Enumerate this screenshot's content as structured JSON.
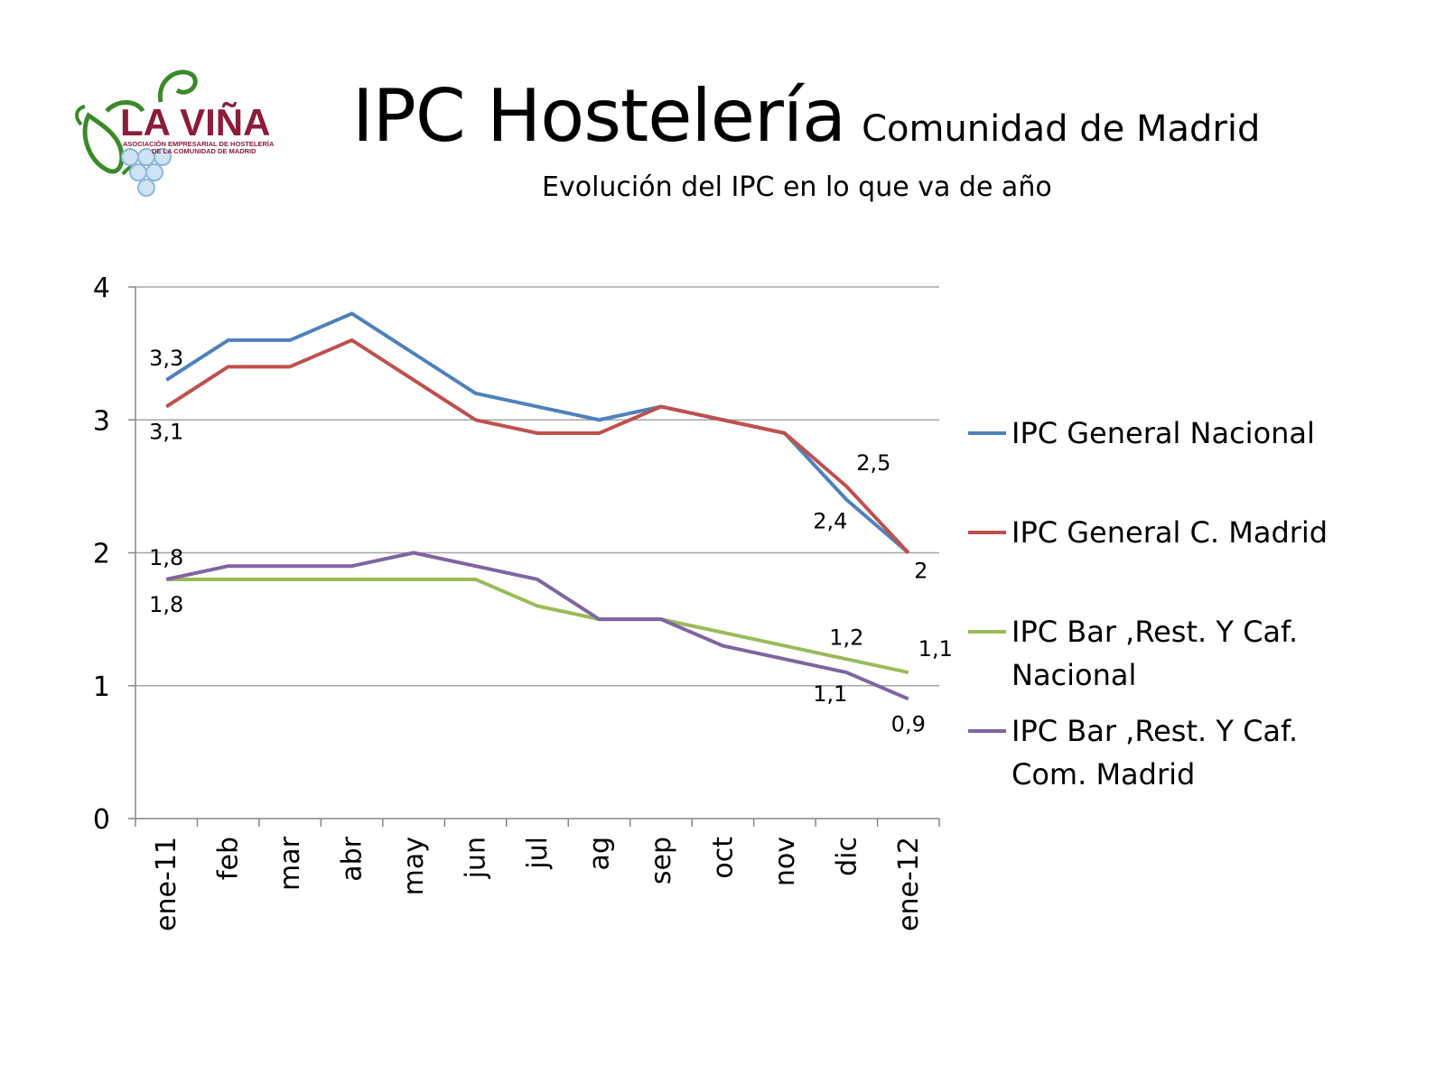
{
  "logo": {
    "name": "LA VIÑA",
    "tagline_1": "ASOCIACIÓN EMPRESARIAL DE HOSTELERÍA",
    "tagline_2": "DE LA COMUNIDAD DE MADRID"
  },
  "header": {
    "title": "IPC Hostelería",
    "title_suffix": "Comunidad de Madrid",
    "subtitle": "Evolución del IPC en lo que va de año"
  },
  "colors": {
    "general_nacional": "#4f81bd",
    "general_madrid": "#c0504d",
    "bar_nacional": "#9bbb59",
    "bar_madrid": "#8064a2",
    "gridline": "#a6a6a6",
    "axis": "#868686"
  },
  "chart_data": {
    "type": "line",
    "categories": [
      "ene-11",
      "feb",
      "mar",
      "abr",
      "may",
      "jun",
      "jul",
      "ag",
      "sep",
      "oct",
      "nov",
      "dic",
      "ene-12"
    ],
    "ylim": [
      0,
      4
    ],
    "yticks": [
      "0",
      "1",
      "2",
      "3",
      "4"
    ],
    "grid": true,
    "legend_position": "right",
    "series": [
      {
        "name": "IPC General Nacional",
        "color_key": "general_nacional",
        "values": [
          3.3,
          3.6,
          3.6,
          3.8,
          3.5,
          3.2,
          3.1,
          3.0,
          3.1,
          3.0,
          2.9,
          2.4,
          2.0
        ]
      },
      {
        "name": "IPC General C. Madrid",
        "color_key": "general_madrid",
        "values": [
          3.1,
          3.4,
          3.4,
          3.6,
          3.3,
          3.0,
          2.9,
          2.9,
          3.1,
          3.0,
          2.9,
          2.5,
          2.0
        ]
      },
      {
        "name": "IPC Bar ,Rest. Y Caf. Nacional",
        "legend_lines": [
          "IPC Bar ,Rest. Y Caf.",
          "Nacional"
        ],
        "color_key": "bar_nacional",
        "values": [
          1.8,
          1.8,
          1.8,
          1.8,
          1.8,
          1.8,
          1.6,
          1.5,
          1.5,
          1.4,
          1.3,
          1.2,
          1.1
        ]
      },
      {
        "name": "IPC Bar ,Rest. Y Caf. Com. Madrid",
        "legend_lines": [
          "IPC Bar ,Rest. Y Caf.",
          "Com. Madrid"
        ],
        "color_key": "bar_madrid",
        "values": [
          1.8,
          1.9,
          1.9,
          1.9,
          2.0,
          1.9,
          1.8,
          1.5,
          1.5,
          1.3,
          1.2,
          1.1,
          0.9
        ]
      }
    ],
    "data_labels": [
      {
        "series": 0,
        "index": 0,
        "text": "3,3",
        "placement": "above"
      },
      {
        "series": 1,
        "index": 0,
        "text": "3,1",
        "placement": "below"
      },
      {
        "series": 3,
        "index": 0,
        "text": "1,8",
        "placement": "above"
      },
      {
        "series": 2,
        "index": 0,
        "text": "1,8",
        "placement": "below"
      },
      {
        "series": 1,
        "index": 11,
        "text": "2,5",
        "placement": "above-right"
      },
      {
        "series": 0,
        "index": 11,
        "text": "2,4",
        "placement": "below-left"
      },
      {
        "series": 1,
        "index": 12,
        "text": "2",
        "placement": "below-right"
      },
      {
        "series": 2,
        "index": 11,
        "text": "1,2",
        "placement": "above"
      },
      {
        "series": 2,
        "index": 12,
        "text": "1,1",
        "placement": "above-right"
      },
      {
        "series": 3,
        "index": 11,
        "text": "1,1",
        "placement": "below-left"
      },
      {
        "series": 3,
        "index": 12,
        "text": "0,9",
        "placement": "below"
      }
    ]
  }
}
